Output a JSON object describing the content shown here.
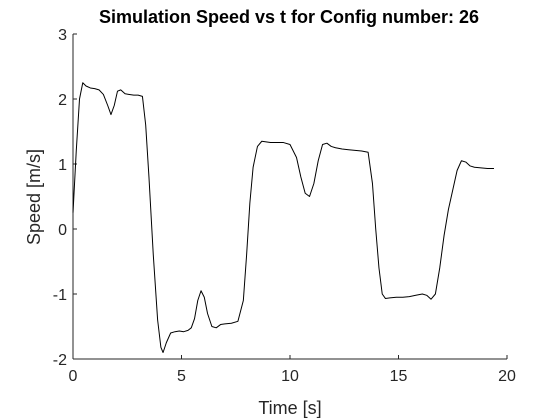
{
  "chart_data": {
    "type": "line",
    "title": "Simulation Speed vs t for Config number: 26",
    "xlabel": "Time [s]",
    "ylabel": "Speed [m/s]",
    "xlim": [
      0,
      20
    ],
    "ylim": [
      -2,
      3
    ],
    "xticks": [
      "0",
      "5",
      "10",
      "15",
      "20"
    ],
    "yticks": [
      "-2",
      "-1",
      "0",
      "1",
      "2",
      "3"
    ],
    "grid": false,
    "legend": "none",
    "line_color": "#000000",
    "series": [
      {
        "x": [
          0.0,
          0.15,
          0.3,
          0.45,
          0.6,
          0.8,
          1.0,
          1.2,
          1.4,
          1.6,
          1.75,
          1.9,
          2.05,
          2.2,
          2.4,
          2.6,
          2.8,
          3.0,
          3.2,
          3.35,
          3.5,
          3.7,
          3.9,
          4.05,
          4.15,
          4.3,
          4.5,
          4.7,
          4.9,
          5.1,
          5.3,
          5.45,
          5.6,
          5.75,
          5.9,
          6.05,
          6.2,
          6.4,
          6.6,
          6.8,
          7.0,
          7.3,
          7.6,
          7.85,
          8.0,
          8.15,
          8.3,
          8.5,
          8.7,
          8.9,
          9.1,
          9.4,
          9.7,
          10.0,
          10.3,
          10.5,
          10.7,
          10.9,
          11.1,
          11.3,
          11.5,
          11.7,
          11.9,
          12.1,
          12.4,
          12.7,
          13.0,
          13.3,
          13.6,
          13.8,
          13.95,
          14.1,
          14.25,
          14.4,
          14.6,
          14.9,
          15.2,
          15.5,
          15.8,
          16.1,
          16.3,
          16.5,
          16.7,
          16.9,
          17.1,
          17.3,
          17.5,
          17.7,
          17.9,
          18.1,
          18.3,
          18.5,
          18.8,
          19.1,
          19.4
        ],
        "y": [
          0.25,
          1.2,
          2.0,
          2.25,
          2.2,
          2.17,
          2.16,
          2.14,
          2.07,
          1.9,
          1.76,
          1.9,
          2.12,
          2.14,
          2.08,
          2.07,
          2.06,
          2.06,
          2.04,
          1.6,
          0.8,
          -0.4,
          -1.4,
          -1.82,
          -1.9,
          -1.75,
          -1.6,
          -1.58,
          -1.57,
          -1.58,
          -1.56,
          -1.52,
          -1.38,
          -1.1,
          -0.95,
          -1.05,
          -1.3,
          -1.5,
          -1.52,
          -1.47,
          -1.46,
          -1.45,
          -1.42,
          -1.1,
          -0.4,
          0.4,
          0.95,
          1.27,
          1.35,
          1.34,
          1.33,
          1.33,
          1.33,
          1.3,
          1.1,
          0.8,
          0.55,
          0.5,
          0.7,
          1.05,
          1.3,
          1.32,
          1.27,
          1.25,
          1.23,
          1.22,
          1.21,
          1.2,
          1.18,
          0.7,
          0.0,
          -0.6,
          -1.0,
          -1.07,
          -1.06,
          -1.05,
          -1.05,
          -1.04,
          -1.02,
          -1.0,
          -1.02,
          -1.08,
          -1.0,
          -0.6,
          -0.1,
          0.3,
          0.6,
          0.9,
          1.05,
          1.03,
          0.97,
          0.95,
          0.94,
          0.93,
          0.93
        ]
      }
    ]
  }
}
